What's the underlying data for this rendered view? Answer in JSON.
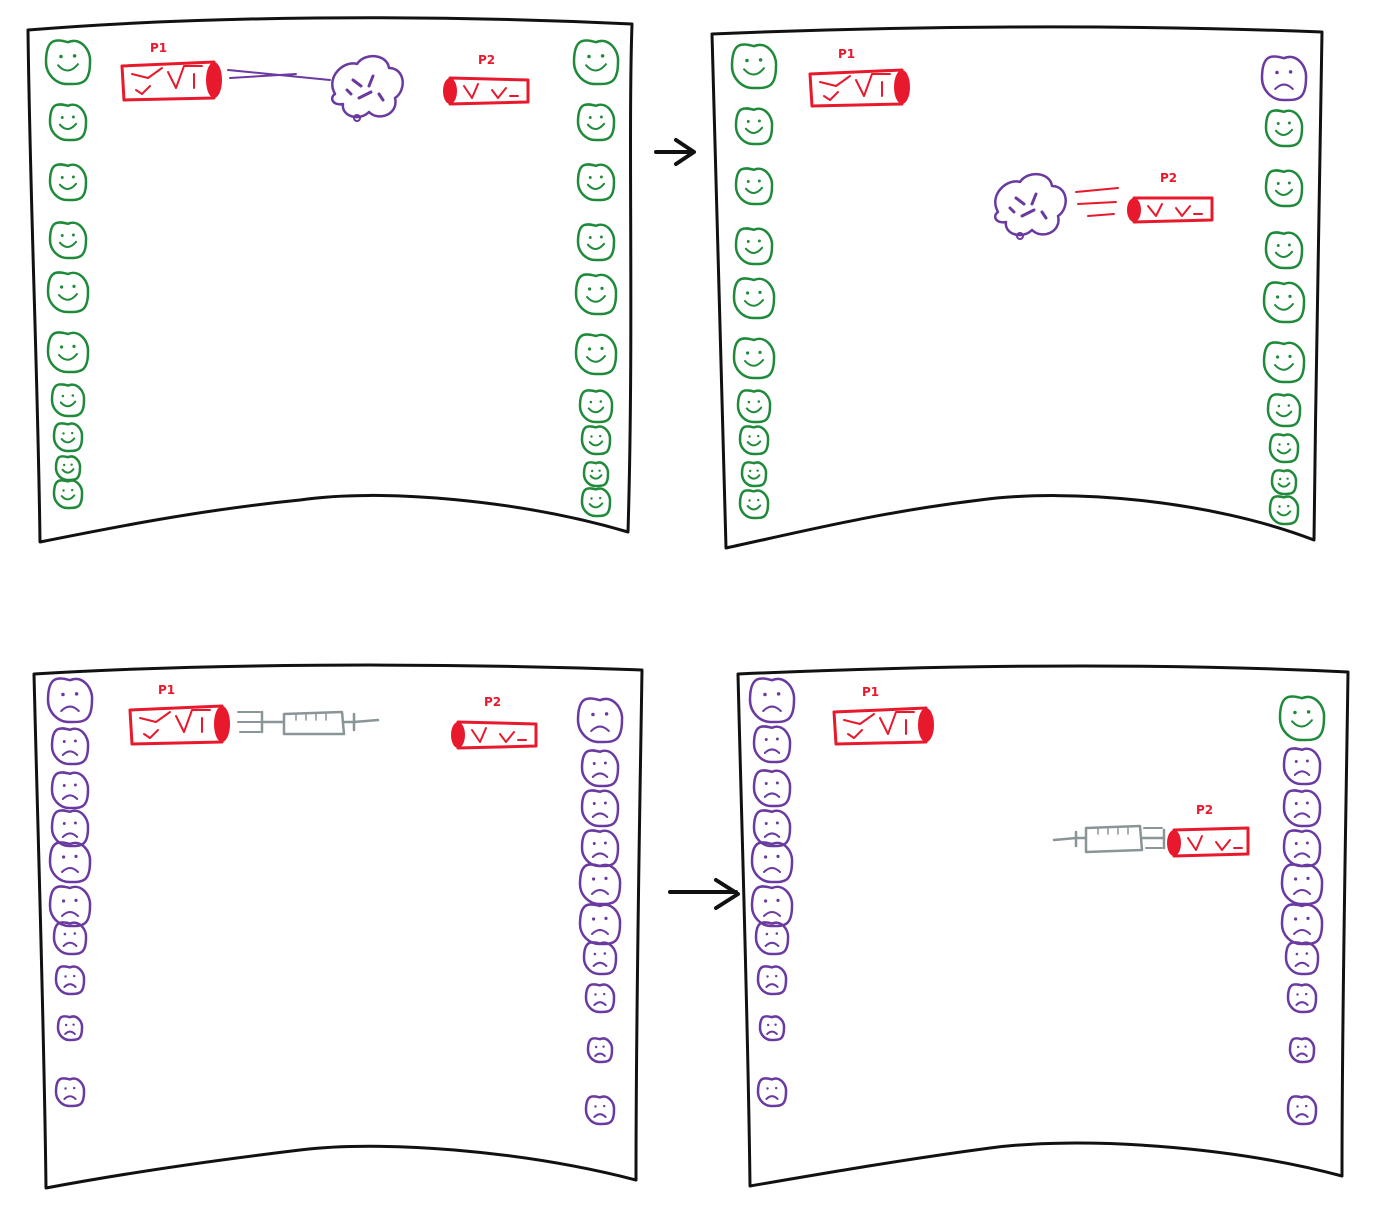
{
  "colors": {
    "frame": "#111111",
    "healthy": "#1f8a3a",
    "sick": "#6a3aa0",
    "player": "#e8192c",
    "virus": "#6a3aa0",
    "syringe": "#8a9597",
    "arrow": "#111111"
  },
  "players": {
    "p1_label": "P1",
    "p2_label": "P2"
  },
  "panels": [
    {
      "id": "virus-fire",
      "projectile": "virus-cloud-icon",
      "left_column": [
        "healthy",
        "healthy",
        "healthy",
        "healthy",
        "healthy",
        "healthy",
        "healthy",
        "healthy",
        "healthy",
        "healthy"
      ],
      "right_column": [
        "healthy",
        "healthy",
        "healthy",
        "healthy",
        "healthy",
        "healthy",
        "healthy",
        "healthy",
        "healthy",
        "healthy"
      ]
    },
    {
      "id": "virus-hit",
      "projectile": "virus-cloud-icon",
      "left_column": [
        "healthy",
        "healthy",
        "healthy",
        "healthy",
        "healthy",
        "healthy",
        "healthy",
        "healthy",
        "healthy",
        "healthy"
      ],
      "right_column": [
        "sick",
        "healthy",
        "healthy",
        "healthy",
        "healthy",
        "healthy",
        "healthy",
        "healthy",
        "healthy",
        "healthy"
      ]
    },
    {
      "id": "vaccine-fire",
      "projectile": "syringe-icon",
      "left_column": [
        "sick",
        "sick",
        "sick",
        "sick",
        "sick",
        "sick",
        "sick",
        "sick",
        "sick",
        "sick"
      ],
      "right_column": [
        "sick",
        "sick",
        "sick",
        "sick",
        "sick",
        "sick",
        "sick",
        "sick",
        "sick",
        "sick"
      ]
    },
    {
      "id": "vaccine-hit",
      "projectile": "syringe-icon",
      "left_column": [
        "sick",
        "sick",
        "sick",
        "sick",
        "sick",
        "sick",
        "sick",
        "sick",
        "sick",
        "sick"
      ],
      "right_column": [
        "healthy",
        "sick",
        "sick",
        "sick",
        "sick",
        "sick",
        "sick",
        "sick",
        "sick",
        "sick"
      ]
    }
  ]
}
